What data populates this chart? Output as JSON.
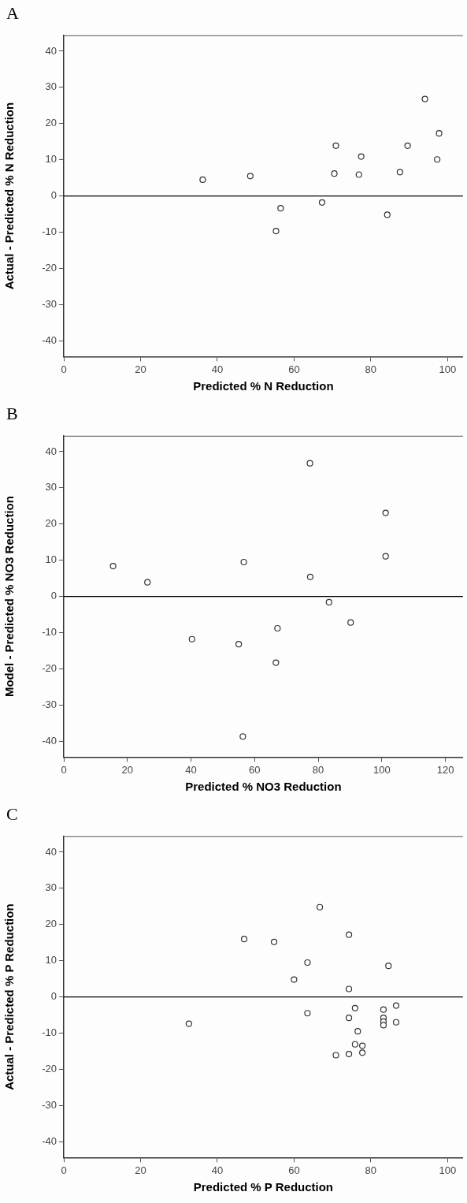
{
  "chart_data": [
    {
      "type": "scatter",
      "title": "A",
      "xlabel": "Predicted % N Reduction",
      "ylabel": "Actual - Predicted % N Reduction",
      "xlim": [
        0,
        104
      ],
      "ylim": [
        -44.4,
        44.4
      ],
      "xticks": [
        0,
        20,
        40,
        60,
        80,
        100
      ],
      "yticks": [
        -40,
        -30,
        -20,
        -10,
        0,
        10,
        20,
        30,
        40
      ],
      "grid": false,
      "legend": false,
      "marker": "circle",
      "ref_lines": [
        {
          "axis": "y",
          "value": 0,
          "color": "#000000"
        }
      ],
      "series": [
        {
          "color": "#333333",
          "x": [
            36.2,
            48.6,
            56.5,
            55.3,
            67.3,
            70.9,
            70.5,
            77.5,
            76.9,
            84.3,
            87.6,
            89.6,
            94.1,
            97.8,
            97.3
          ],
          "values": [
            4.5,
            5.5,
            -3.4,
            -9.7,
            -1.8,
            13.9,
            6.2,
            10.9,
            5.9,
            -5.2,
            6.6,
            13.9,
            26.8,
            17.3,
            10.1
          ]
        }
      ]
    },
    {
      "type": "scatter",
      "title": "B",
      "xlabel": "Predicted % NO3 Reduction",
      "ylabel": "Model - Predicted % NO3 Reduction",
      "xlim": [
        0,
        125.5
      ],
      "ylim": [
        -44.4,
        44.4
      ],
      "xticks": [
        0,
        20,
        40,
        60,
        80,
        100,
        120
      ],
      "yticks": [
        -40,
        -30,
        -20,
        -10,
        0,
        10,
        20,
        30,
        40
      ],
      "grid": false,
      "legend": false,
      "marker": "circle",
      "ref_lines": [
        {
          "axis": "y",
          "value": 0,
          "color": "#000000"
        }
      ],
      "series": [
        {
          "color": "#333333",
          "x": [
            15.5,
            26.3,
            40.3,
            55.0,
            56.6,
            56.3,
            67.2,
            66.7,
            77.4,
            77.5,
            83.4,
            90.2,
            101.2,
            101.2
          ],
          "values": [
            8.4,
            3.9,
            -11.8,
            -13.2,
            9.5,
            -38.7,
            -8.8,
            -18.3,
            36.8,
            5.4,
            -1.6,
            -7.2,
            23.1,
            11.1
          ]
        }
      ]
    },
    {
      "type": "scatter",
      "title": "C",
      "xlabel": "Predicted % P Reduction",
      "ylabel": "Actual - Predicted % P Reduction",
      "xlim": [
        0,
        104
      ],
      "ylim": [
        -44.4,
        44.4
      ],
      "xticks": [
        0,
        20,
        40,
        60,
        80,
        100
      ],
      "yticks": [
        -40,
        -30,
        -20,
        -10,
        0,
        10,
        20,
        30,
        40
      ],
      "grid": false,
      "legend": false,
      "marker": "circle",
      "ref_lines": [
        {
          "axis": "y",
          "value": 0,
          "color": "#000000"
        }
      ],
      "series": [
        {
          "color": "#333333",
          "x": [
            32.6,
            47.0,
            54.8,
            60.0,
            63.5,
            63.5,
            66.7,
            70.9,
            74.3,
            74.3,
            74.3,
            74.3,
            75.9,
            76.6,
            75.9,
            77.8,
            77.8,
            83.3,
            83.3,
            83.3,
            83.3,
            84.6,
            86.6,
            86.6
          ],
          "values": [
            -7.4,
            16.0,
            15.2,
            4.8,
            9.5,
            -4.5,
            24.8,
            -16.1,
            17.2,
            2.2,
            -5.8,
            -15.8,
            -3.1,
            -9.5,
            -13.1,
            -13.5,
            -15.4,
            -3.5,
            -5.8,
            -6.8,
            -7.8,
            8.6,
            -2.4,
            -7.0
          ]
        }
      ]
    }
  ]
}
